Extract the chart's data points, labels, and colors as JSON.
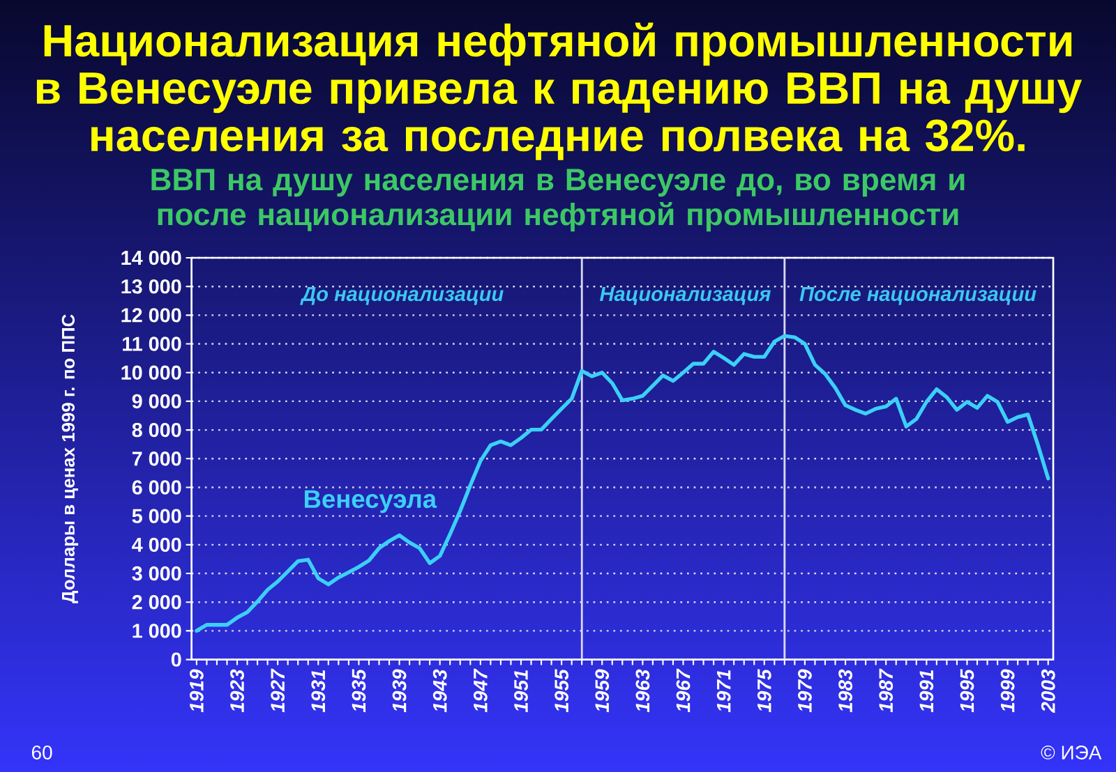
{
  "chart_data": {
    "type": "line",
    "title": "Национализация нефтяной промышленности в Венесуэле привела к падению ВВП на душу населения за последние полвека на 32%.",
    "subtitle": "ВВП на душу населения в Венесуэле до, во время и после национализации нефтяной промышленности",
    "ylabel": "Доллары в ценах 1999 г. по ППС",
    "x": [
      1919,
      1920,
      1921,
      1922,
      1923,
      1924,
      1925,
      1926,
      1927,
      1928,
      1929,
      1930,
      1931,
      1932,
      1933,
      1934,
      1935,
      1936,
      1937,
      1938,
      1939,
      1940,
      1941,
      1942,
      1943,
      1944,
      1945,
      1946,
      1947,
      1948,
      1949,
      1950,
      1951,
      1952,
      1953,
      1954,
      1955,
      1956,
      1957,
      1958,
      1959,
      1960,
      1961,
      1962,
      1963,
      1964,
      1965,
      1966,
      1967,
      1968,
      1969,
      1970,
      1971,
      1972,
      1973,
      1974,
      1975,
      1976,
      1977,
      1978,
      1979,
      1980,
      1981,
      1982,
      1983,
      1984,
      1985,
      1986,
      1987,
      1988,
      1989,
      1990,
      1991,
      1992,
      1993,
      1994,
      1995,
      1996,
      1997,
      1998,
      1999,
      2000,
      2001,
      2002,
      2003
    ],
    "series": [
      {
        "name": "Венесуэла",
        "color": "#3cd0f8",
        "values": [
          1000,
          1210,
          1210,
          1210,
          1460,
          1650,
          2020,
          2430,
          2720,
          3070,
          3430,
          3480,
          2830,
          2620,
          2860,
          3040,
          3230,
          3450,
          3880,
          4130,
          4330,
          4080,
          3880,
          3360,
          3610,
          4370,
          5180,
          6070,
          6920,
          7470,
          7600,
          7470,
          7720,
          8010,
          8010,
          8380,
          8740,
          9090,
          10060,
          9870,
          10000,
          9630,
          9030,
          9090,
          9190,
          9540,
          9900,
          9710,
          10000,
          10310,
          10310,
          10730,
          10510,
          10270,
          10650,
          10550,
          10550,
          11080,
          11280,
          11230,
          11000,
          10270,
          9950,
          9470,
          8860,
          8700,
          8570,
          8740,
          8820,
          9090,
          8120,
          8380,
          8980,
          9420,
          9140,
          8700,
          8980,
          8770,
          9190,
          8980,
          8280,
          8450,
          8540,
          7470,
          6310
        ]
      }
    ],
    "xlim": [
      1918.5,
      2003.5
    ],
    "xticks": [
      1919,
      {
        "value": 1920,
        "label": null
      },
      {
        "value": 1921,
        "label": null
      },
      {
        "value": 1922,
        "label": null
      },
      1923,
      {
        "value": 1924,
        "label": null
      },
      {
        "value": 1925,
        "label": null
      },
      {
        "value": 1926,
        "label": null
      },
      1927,
      {
        "value": 1928,
        "label": null
      },
      {
        "value": 1929,
        "label": null
      },
      {
        "value": 1930,
        "label": null
      },
      1931,
      {
        "value": 1932,
        "label": null
      },
      {
        "value": 1933,
        "label": null
      },
      {
        "value": 1934,
        "label": null
      },
      1935,
      {
        "value": 1936,
        "label": null
      },
      {
        "value": 1937,
        "label": null
      },
      {
        "value": 1938,
        "label": null
      },
      1939,
      {
        "value": 1940,
        "label": null
      },
      {
        "value": 1941,
        "label": null
      },
      {
        "value": 1942,
        "label": null
      },
      1943,
      {
        "value": 1944,
        "label": null
      },
      {
        "value": 1945,
        "label": null
      },
      {
        "value": 1946,
        "label": null
      },
      1947,
      {
        "value": 1948,
        "label": null
      },
      {
        "value": 1949,
        "label": null
      },
      {
        "value": 1950,
        "label": null
      },
      1951,
      {
        "value": 1952,
        "label": null
      },
      {
        "value": 1953,
        "label": null
      },
      {
        "value": 1954,
        "label": null
      },
      1955,
      {
        "value": 1956,
        "label": null
      },
      {
        "value": 1957,
        "label": null
      },
      {
        "value": 1958,
        "label": null
      },
      1959,
      {
        "value": 1960,
        "label": null
      },
      {
        "value": 1961,
        "label": null
      },
      {
        "value": 1962,
        "label": null
      },
      1963,
      {
        "value": 1964,
        "label": null
      },
      {
        "value": 1965,
        "label": null
      },
      {
        "value": 1966,
        "label": null
      },
      1967,
      {
        "value": 1968,
        "label": null
      },
      {
        "value": 1969,
        "label": null
      },
      {
        "value": 1970,
        "label": null
      },
      1971,
      {
        "value": 1972,
        "label": null
      },
      {
        "value": 1973,
        "label": null
      },
      {
        "value": 1974,
        "label": null
      },
      1975,
      {
        "value": 1976,
        "label": null
      },
      {
        "value": 1977,
        "label": null
      },
      {
        "value": 1978,
        "label": null
      },
      1979,
      {
        "value": 1980,
        "label": null
      },
      {
        "value": 1981,
        "label": null
      },
      {
        "value": 1982,
        "label": null
      },
      1983,
      {
        "value": 1984,
        "label": null
      },
      {
        "value": 1985,
        "label": null
      },
      {
        "value": 1986,
        "label": null
      },
      1987,
      {
        "value": 1988,
        "label": null
      },
      {
        "value": 1989,
        "label": null
      },
      {
        "value": 1990,
        "label": null
      },
      1991,
      {
        "value": 1992,
        "label": null
      },
      {
        "value": 1993,
        "label": null
      },
      {
        "value": 1994,
        "label": null
      },
      1995,
      {
        "value": 1996,
        "label": null
      },
      {
        "value": 1997,
        "label": null
      },
      {
        "value": 1998,
        "label": null
      },
      1999,
      {
        "value": 2000,
        "label": null
      },
      {
        "value": 2001,
        "label": null
      },
      {
        "value": 2002,
        "label": null
      },
      2003
    ],
    "ylim": [
      0,
      14000
    ],
    "yticks": [
      0,
      {
        "value": 1000,
        "label": "1 000"
      },
      {
        "value": 2000,
        "label": "2 000"
      },
      {
        "value": 3000,
        "label": "3 000"
      },
      {
        "value": 4000,
        "label": "4 000"
      },
      {
        "value": 5000,
        "label": "5 000"
      },
      {
        "value": 6000,
        "label": "6 000"
      },
      {
        "value": 7000,
        "label": "7 000"
      },
      {
        "value": 8000,
        "label": "8 000"
      },
      {
        "value": 9000,
        "label": "9 000"
      },
      {
        "value": 10000,
        "label": "10 000"
      },
      {
        "value": 11000,
        "label": "11 000"
      },
      {
        "value": 12000,
        "label": "12 000"
      },
      {
        "value": 13000,
        "label": "13 000"
      },
      {
        "value": 14000,
        "label": "14 000"
      }
    ],
    "grid": "y",
    "line_style": "solid",
    "ref_lines": [
      {
        "axis": "x",
        "value": 1957,
        "color": "#d8d8f4"
      },
      {
        "axis": "x",
        "value": 1977,
        "color": "#d8d8f4"
      }
    ],
    "annotations": [
      "До национализации",
      "Национализация",
      "После национализации",
      "60",
      "© ИЭА"
    ]
  }
}
